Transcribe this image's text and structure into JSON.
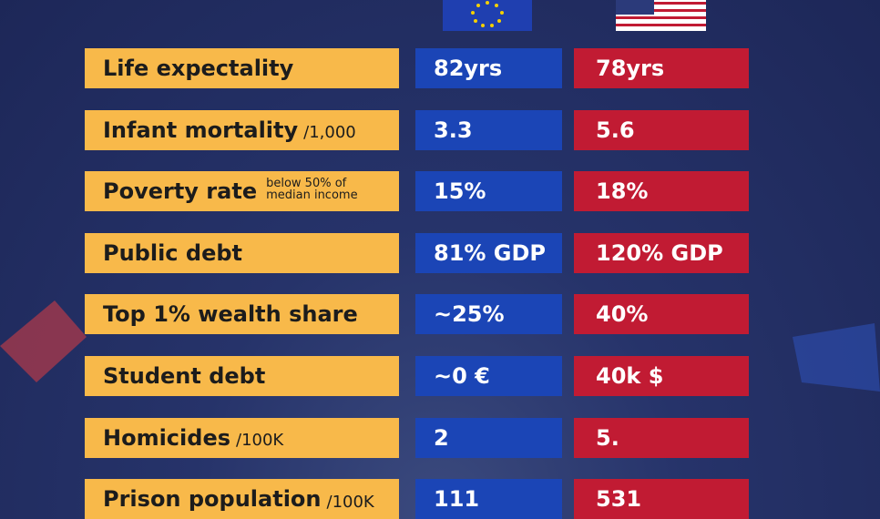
{
  "table": {
    "rows": [
      {
        "label": "Life expectality",
        "eu": "82yrs",
        "us": "78yrs"
      },
      {
        "label": "Infant mortality",
        "note": [
          "/1,000"
        ],
        "eu": "3.3",
        "us": "5.6"
      },
      {
        "label": "Poverty rate",
        "note": [
          "below 50% of",
          "median income"
        ],
        "eu": "15%",
        "us": "18%"
      },
      {
        "label": "Public debt",
        "eu": "81% GDP",
        "us": "120% GDP"
      },
      {
        "label": "Top 1% wealth share",
        "eu": "~25%",
        "us": "40%"
      },
      {
        "label": "Student debt",
        "eu": "~0 €",
        "us": "40k $"
      },
      {
        "label": "Homicides",
        "note": [
          "/100K"
        ],
        "eu": "2",
        "us": "5."
      },
      {
        "label": "Prison population",
        "note": [
          "/100K"
        ],
        "eu": "111",
        "us": "531"
      }
    ]
  }
}
